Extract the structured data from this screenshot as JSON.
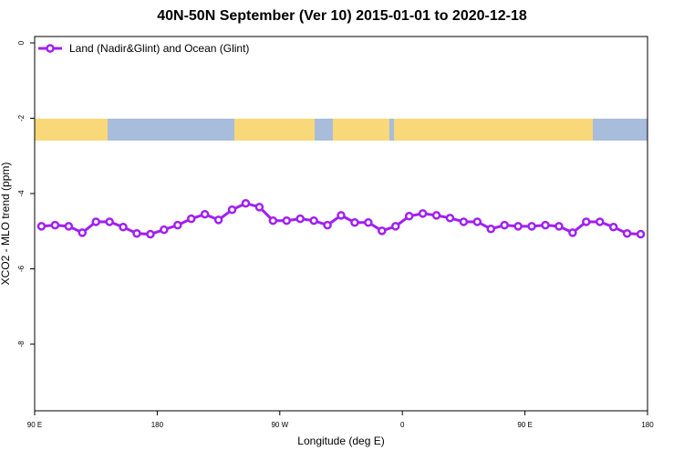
{
  "chart_data": {
    "type": "line",
    "title": "40N-50N September (Ver 10)   2015-01-01 to 2020-12-18",
    "x_label": "Longitude (deg E)",
    "y_label": "XCO2 - MLO trend (ppm)",
    "x": [
      95,
      105,
      115,
      125,
      135,
      145,
      155,
      165,
      175,
      185,
      195,
      205,
      215,
      225,
      235,
      245,
      255,
      265,
      275,
      285,
      295,
      305,
      315,
      325,
      335,
      345,
      355,
      365,
      375,
      385,
      395,
      405,
      415,
      425,
      435,
      445,
      455,
      465,
      475,
      485,
      495,
      505,
      515,
      525,
      535
    ],
    "series": [
      {
        "name": "Land (Nadir&Glint) and Ocean (Glint)",
        "color": "#a020f0",
        "values": [
          -4.87,
          -4.84,
          -4.87,
          -5.04,
          -4.75,
          -4.75,
          -4.89,
          -5.06,
          -5.08,
          -4.96,
          -4.84,
          -4.67,
          -4.55,
          -4.7,
          -4.43,
          -4.26,
          -4.36,
          -4.72,
          -4.72,
          -4.67,
          -4.72,
          -4.84,
          -4.58,
          -4.77,
          -4.77,
          -4.99,
          -4.87,
          -4.6,
          -4.53,
          -4.58,
          -4.65,
          -4.75,
          -4.75,
          -4.94,
          -4.84,
          -4.87,
          -4.87,
          -4.84,
          -4.87,
          -5.04,
          -4.75,
          -4.75,
          -4.89,
          -5.06,
          -5.08
        ]
      }
    ],
    "xlim": [
      90,
      540
    ],
    "xticks": [
      {
        "value": 90,
        "label": "90 E"
      },
      180,
      {
        "value": 270,
        "label": "90 W"
      },
      {
        "value": 360,
        "label": "0"
      },
      {
        "value": 450,
        "label": "90 E"
      },
      {
        "value": 540,
        "label": "180"
      }
    ],
    "ylim": [
      -9.77,
      0.17
    ],
    "yticks": [
      0,
      -2,
      -4,
      -6,
      -8
    ],
    "legend": "top-left"
  }
}
